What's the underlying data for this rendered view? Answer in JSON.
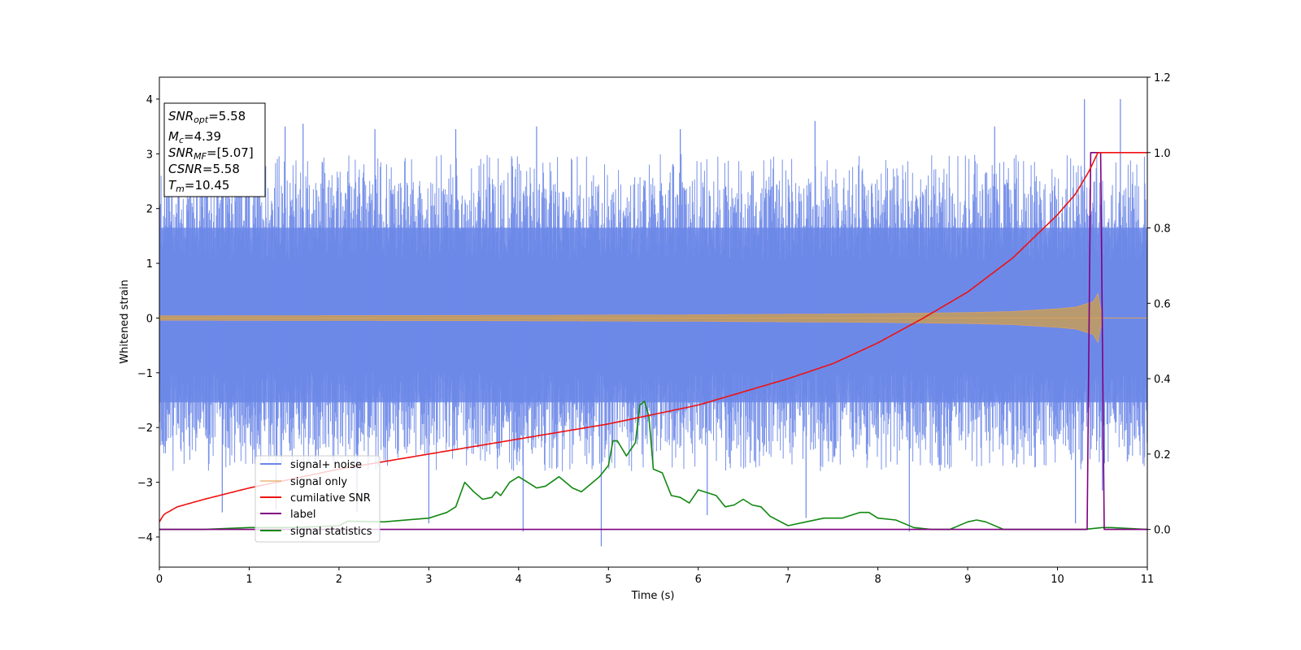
{
  "chart_data": {
    "type": "line",
    "xlabel": "Time (s)",
    "ylabel": "Whitened strain",
    "xlim": [
      0,
      11
    ],
    "ylim_left": [
      -4.55,
      4.4
    ],
    "ylim_right": [
      -0.1,
      1.2
    ],
    "x_ticks": [
      0,
      1,
      2,
      3,
      4,
      5,
      6,
      7,
      8,
      9,
      10,
      11
    ],
    "y_left_ticks": [
      4,
      3,
      2,
      1,
      0,
      -1,
      -2,
      -3,
      -4
    ],
    "y_left_tick_labels": [
      "4",
      "3",
      "2",
      "1",
      "0",
      "−1",
      "−2",
      "−3",
      "−4"
    ],
    "y_right_ticks": [
      1.2,
      1.0,
      0.8,
      0.6,
      0.4,
      0.2,
      0.0
    ],
    "y_right_tick_labels": [
      "1.2",
      "1.0",
      "0.8",
      "0.6",
      "0.4",
      "0.2",
      "0.0"
    ],
    "grid": false,
    "legend_placement": "lower-left",
    "legend": [
      "signal+ noise",
      "signal only",
      "cumilative SNR",
      "label",
      "signal statistics"
    ],
    "colors": {
      "noise": "#6b87e8",
      "signal": "#e8a455",
      "snr": "#ee1111",
      "label": "#800080",
      "stat": "#118811"
    },
    "annotation": {
      "snr_opt": {
        "name": "SNR",
        "sub": "opt",
        "value": "=5.58"
      },
      "mc": {
        "name": "M",
        "sub": "c",
        "value": "=4.39"
      },
      "snr_mf": {
        "name": "SNR",
        "sub": "MF",
        "value": "=[5.07]"
      },
      "csnr": {
        "name": "CSNR",
        "sub": "",
        "value": "=5.58"
      },
      "tm": {
        "name": "T",
        "sub": "m",
        "value": "=10.45"
      }
    },
    "series": [
      {
        "name": "signal+ noise",
        "axis": "left",
        "kind": "noise-band",
        "typical_range": [
          -2.8,
          3.0
        ],
        "spikes": [
          {
            "x": 0.1,
            "y": 2.7
          },
          {
            "x": 1.4,
            "y": 3.5
          },
          {
            "x": 1.6,
            "y": 3.55
          },
          {
            "x": 2.4,
            "y": 3.45
          },
          {
            "x": 3.3,
            "y": 3.45
          },
          {
            "x": 4.2,
            "y": 3.5
          },
          {
            "x": 5.8,
            "y": 3.45
          },
          {
            "x": 7.3,
            "y": 3.6
          },
          {
            "x": 9.3,
            "y": 3.5
          },
          {
            "x": 10.3,
            "y": 4.0
          },
          {
            "x": 10.7,
            "y": 4.0
          },
          {
            "x": 0.7,
            "y": -3.55
          },
          {
            "x": 1.3,
            "y": -3.5
          },
          {
            "x": 2.2,
            "y": -3.55
          },
          {
            "x": 3.0,
            "y": -3.75
          },
          {
            "x": 4.05,
            "y": -3.9
          },
          {
            "x": 4.92,
            "y": -4.17
          },
          {
            "x": 6.1,
            "y": -3.6
          },
          {
            "x": 7.2,
            "y": -3.65
          },
          {
            "x": 8.35,
            "y": -3.9
          },
          {
            "x": 10.2,
            "y": -3.75
          },
          {
            "x": 10.5,
            "y": -3.15
          }
        ]
      },
      {
        "name": "signal only",
        "axis": "left",
        "kind": "chirp-envelope",
        "x": [
          0,
          2,
          4,
          6,
          8,
          9,
          9.5,
          10,
          10.2,
          10.4,
          10.45,
          10.5,
          11
        ],
        "amplitude": [
          0.04,
          0.045,
          0.05,
          0.06,
          0.08,
          0.1,
          0.12,
          0.17,
          0.2,
          0.3,
          0.45,
          0.0,
          0.0
        ]
      },
      {
        "name": "cumilative SNR",
        "axis": "right",
        "x": [
          0,
          0.05,
          0.2,
          0.5,
          1,
          1.5,
          2,
          3,
          4,
          5,
          6,
          7,
          7.5,
          8,
          8.5,
          9,
          9.5,
          10,
          10.2,
          10.35,
          10.45,
          11
        ],
        "values": [
          0.02,
          0.04,
          0.06,
          0.08,
          0.11,
          0.135,
          0.16,
          0.2,
          0.24,
          0.28,
          0.33,
          0.4,
          0.44,
          0.495,
          0.56,
          0.63,
          0.72,
          0.835,
          0.89,
          0.95,
          1.0,
          1.0
        ]
      },
      {
        "name": "label",
        "axis": "right",
        "x": [
          0,
          10.33,
          10.37,
          10.48,
          10.52,
          11
        ],
        "values": [
          0.0,
          0.0,
          1.0,
          1.0,
          0.0,
          0.0
        ]
      },
      {
        "name": "signal statistics",
        "axis": "right",
        "x": [
          0,
          0.5,
          1,
          1.5,
          2,
          2.1,
          2.5,
          3,
          3.2,
          3.3,
          3.4,
          3.5,
          3.6,
          3.7,
          3.75,
          3.8,
          3.9,
          4.0,
          4.1,
          4.2,
          4.3,
          4.45,
          4.55,
          4.6,
          4.7,
          4.8,
          4.9,
          5.0,
          5.05,
          5.1,
          5.2,
          5.3,
          5.35,
          5.4,
          5.45,
          5.5,
          5.6,
          5.7,
          5.8,
          5.9,
          6.0,
          6.2,
          6.3,
          6.4,
          6.5,
          6.6,
          6.7,
          6.8,
          7.0,
          7.2,
          7.4,
          7.6,
          7.8,
          7.9,
          8.0,
          8.2,
          8.4,
          8.6,
          8.8,
          9.0,
          9.1,
          9.2,
          9.4,
          9.6,
          9.8,
          10.0,
          10.3,
          10.5,
          10.6,
          11
        ],
        "values": [
          0.0,
          0.0,
          0.005,
          0.005,
          0.01,
          0.022,
          0.02,
          0.03,
          0.045,
          0.06,
          0.125,
          0.1,
          0.08,
          0.085,
          0.1,
          0.09,
          0.125,
          0.14,
          0.125,
          0.11,
          0.115,
          0.14,
          0.12,
          0.11,
          0.1,
          0.12,
          0.14,
          0.17,
          0.235,
          0.235,
          0.195,
          0.23,
          0.33,
          0.34,
          0.3,
          0.16,
          0.15,
          0.09,
          0.085,
          0.07,
          0.105,
          0.09,
          0.06,
          0.065,
          0.08,
          0.065,
          0.06,
          0.035,
          0.01,
          0.02,
          0.03,
          0.03,
          0.045,
          0.045,
          0.03,
          0.025,
          0.005,
          0.0,
          0.0,
          0.02,
          0.025,
          0.02,
          0.0,
          0.0,
          0.0,
          0.0,
          0.0,
          0.005,
          0.005,
          0.0
        ]
      }
    ]
  }
}
